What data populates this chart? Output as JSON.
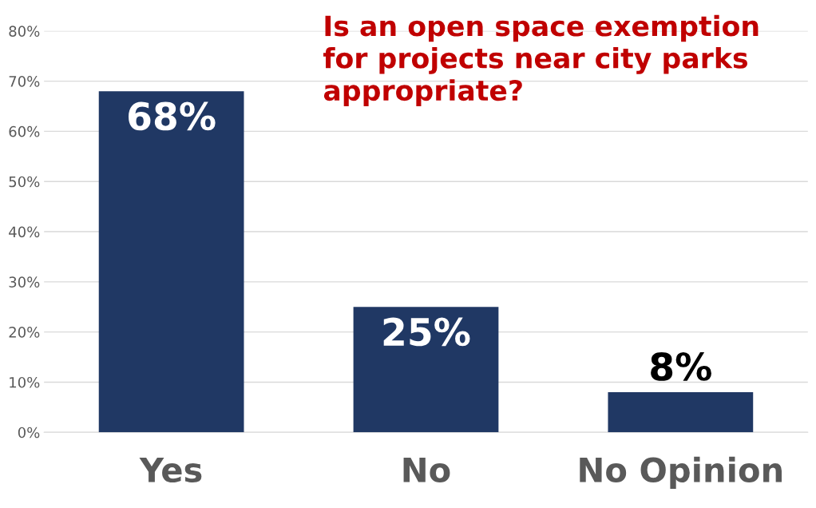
{
  "chart_data": {
    "type": "bar",
    "title": "Is an open space exemption\nfor projects near city parks\nappropriate?",
    "categories": [
      "Yes",
      "No",
      "No Opinion"
    ],
    "values": [
      68,
      25,
      8
    ],
    "value_labels": [
      "68%",
      "25%",
      "8%"
    ],
    "color": "#203864",
    "ylim": [
      0,
      80
    ],
    "yticks": [
      {
        "value": 0,
        "label": "0%"
      },
      {
        "value": 10,
        "label": "10%"
      },
      {
        "value": 20,
        "label": "20%"
      },
      {
        "value": 30,
        "label": "30%"
      },
      {
        "value": 40,
        "label": "40%"
      },
      {
        "value": 50,
        "label": "50%"
      },
      {
        "value": 60,
        "label": "60%"
      },
      {
        "value": 70,
        "label": "70%"
      },
      {
        "value": 80,
        "label": "80%"
      }
    ],
    "grid": "y"
  }
}
